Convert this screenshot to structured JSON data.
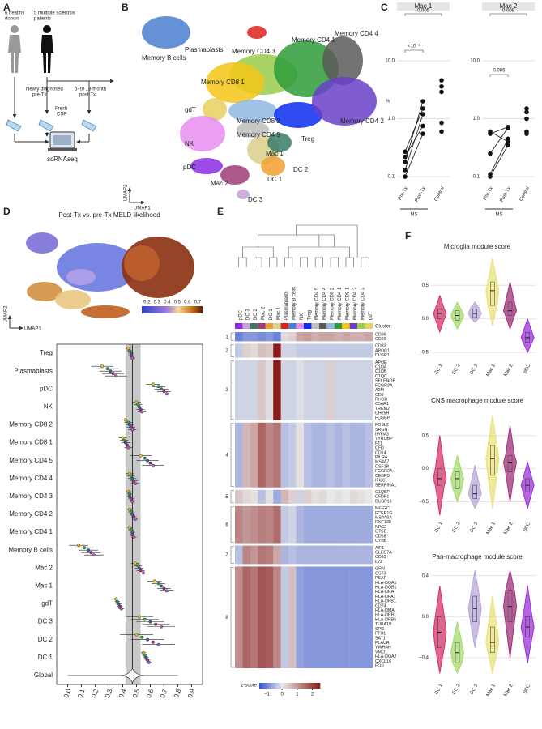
{
  "panel_labels": [
    "A",
    "B",
    "C",
    "D",
    "E",
    "F"
  ],
  "panel_a": {
    "donors": [
      "6 healthy",
      "donors"
    ],
    "patients": [
      "5 multiple sclerosis",
      "patients"
    ],
    "pre": [
      "Newly diagnosed",
      "pre-Tx"
    ],
    "post": [
      "6- to 18-month",
      "post-Tx"
    ],
    "csf": [
      "Fresh",
      "CSF"
    ],
    "method": "scRNAseq"
  },
  "panel_b": {
    "axis_y": "UMAP2",
    "axis_x": "UMAP1",
    "clusters": [
      {
        "label": "Memory B cells",
        "color": "#4a7fd0"
      },
      {
        "label": "Plasmablasts",
        "color": "#e0201a"
      },
      {
        "label": "Memory CD4 3",
        "color": "#9acd4a"
      },
      {
        "label": "Memory CD4 1",
        "color": "#2e9b3a"
      },
      {
        "label": "Memory CD4 4",
        "color": "#5a5a5a"
      },
      {
        "label": "Memory CD8 1",
        "color": "#f5c518"
      },
      {
        "label": "gdT",
        "color": "#e8d060"
      },
      {
        "label": "NK",
        "color": "#e88ef0"
      },
      {
        "label": "Memory CD8 2",
        "color": "#8fb8e0"
      },
      {
        "label": "Memory CD4 5",
        "color": "#bdbdbd"
      },
      {
        "label": "Mac 1",
        "color": "#d8cf8a"
      },
      {
        "label": "pDC",
        "color": "#8a2be2"
      },
      {
        "label": "Treg",
        "color": "#0a2cf0"
      },
      {
        "label": "DC 2",
        "color": "#3a7a6a"
      },
      {
        "label": "Memory CD4 2",
        "color": "#6a3fc9"
      },
      {
        "label": "DC 1",
        "color": "#f0a030"
      },
      {
        "label": "Mac 2",
        "color": "#a03c7a"
      },
      {
        "label": "DC 3",
        "color": "#c7a0d8"
      }
    ]
  },
  "panel_c": {
    "type": "dot",
    "y_label": "%",
    "log_scale": true,
    "ylim": [
      0.08,
      50
    ],
    "yticks": [
      0.1,
      {
        "value": 1,
        "label": "1.0"
      },
      {
        "value": 10,
        "label": "10.0"
      }
    ],
    "categories": [
      "Pre-Tx",
      "Post-Tx",
      "Control"
    ],
    "group_label": "MS",
    "color": "#111111",
    "grid": true,
    "plots": [
      {
        "title": "Mac 1",
        "pre": [
          0.1,
          0.13,
          0.18,
          0.22,
          0.27
        ],
        "post": [
          0.55,
          1.2,
          2.0,
          0.75,
          1.5
        ],
        "control": [
          4.6,
          3.6,
          2.9,
          0.85,
          0.6
        ],
        "p_outer": "0.005",
        "p_inner": "<10⁻³"
      },
      {
        "title": "Mac 2",
        "pre": [
          0.1,
          0.11,
          0.25,
          0.55,
          0.6
        ],
        "post": [
          0.35,
          0.45,
          0.7,
          0.72,
          0.4
        ],
        "control": [
          1.5,
          1.3,
          1.0,
          0.6,
          0.55
        ],
        "p_outer": "0.008",
        "p_inner": "0.006"
      }
    ]
  },
  "panel_d": {
    "title": "Post-Tx vs. pre-Tx MELD likelihood",
    "axis_y": "UMAP2",
    "axis_x": "UMAP1",
    "colorbar_lim": [
      0.15,
      0.75
    ],
    "colorbar_ticks": [
      0.2,
      0.3,
      0.4,
      0.5,
      0.6,
      0.7
    ],
    "forest": {
      "type": "forest",
      "categories": [
        "Treg",
        "Plasmablasts",
        "pDC",
        "NK",
        "Memory CD8 2",
        "Memory CD8 1",
        "Memory CD4 5",
        "Memory CD4 4",
        "Memory CD4 3",
        "Memory CD4 2",
        "Memory CD4 1",
        "Memory B cells",
        "Mac 2",
        "Mac 1",
        "gdT",
        "DC 3",
        "DC 2",
        "DC 1"
      ],
      "values": [
        [
          0.44,
          0.45,
          0.46,
          0.46,
          0.47
        ],
        [
          0.25,
          0.29,
          0.31,
          0.33,
          0.35
        ],
        [
          0.62,
          0.66,
          0.68,
          0.7,
          0.72
        ],
        [
          0.5,
          0.51,
          0.52,
          0.53,
          0.54
        ],
        [
          0.42,
          0.44,
          0.45,
          0.46,
          0.47
        ],
        [
          0.4,
          0.41,
          0.42,
          0.43,
          0.44
        ],
        [
          0.53,
          0.56,
          0.58,
          0.6,
          0.62
        ],
        [
          0.45,
          0.46,
          0.47,
          0.48,
          0.49
        ],
        [
          0.44,
          0.45,
          0.45,
          0.46,
          0.47
        ],
        [
          0.45,
          0.46,
          0.47,
          0.48,
          0.49
        ],
        [
          0.45,
          0.46,
          0.47,
          0.47,
          0.48
        ],
        [
          0.08,
          0.12,
          0.15,
          0.17,
          0.19
        ],
        [
          0.49,
          0.51,
          0.52,
          0.53,
          0.55
        ],
        [
          0.63,
          0.66,
          0.68,
          0.7,
          0.72
        ],
        [
          0.35,
          0.36,
          0.37,
          0.38,
          0.39
        ],
        [
          0.52,
          0.56,
          0.6,
          0.64,
          0.68
        ],
        [
          0.5,
          0.54,
          0.58,
          0.62,
          0.66
        ],
        [
          0.55,
          0.56,
          0.57,
          0.58,
          0.59
        ]
      ],
      "errors": [
        0.02,
        0.08,
        0.05,
        0.03,
        0.03,
        0.03,
        0.08,
        0.03,
        0.02,
        0.02,
        0.02,
        0.07,
        0.03,
        0.05,
        0.02,
        0.1,
        0.12,
        0.02
      ],
      "point_colors": [
        "#e8c020",
        "#40a040",
        "#3060c0",
        "#b03070",
        "#a060d0"
      ],
      "global_label": "Global",
      "global_center": 0.47,
      "global_range": [
        0.0,
        0.8
      ],
      "band": [
        0.42,
        0.53
      ],
      "xlim": [
        -0.08,
        0.98
      ],
      "xticks": [
        {
          "value": 0,
          "label": "0.0"
        },
        0.1,
        0.2,
        0.3,
        0.4,
        0.5,
        0.6,
        0.7,
        0.8,
        0.9
      ]
    }
  },
  "panel_e": {
    "type": "heatmap",
    "cluster_label": "Cluster",
    "colorbar_label": "z-score",
    "zlim": [
      -1.5,
      2.5
    ],
    "zticks": [
      {
        "value": -1,
        "label": "−1"
      },
      0,
      1,
      2
    ],
    "columns": [
      "pDC",
      "DC 3",
      "DC 2",
      "Mac 2",
      "DC 1",
      "Mac 1",
      "Plasmablasts",
      "Memory B cells",
      "NK",
      "Treg",
      "Memory CD4 5",
      "Memory CD4 4",
      "Memory CD8 2",
      "Memory CD4 1",
      "Memory CD8 1",
      "Memory CD4 2",
      "Memory CD4 3",
      "gdT"
    ],
    "column_colors": [
      "#8a2be2",
      "#c7a0d8",
      "#3a7a6a",
      "#a03c7a",
      "#f0a030",
      "#d8cf8a",
      "#e0201a",
      "#4a7fd0",
      "#e88ef0",
      "#0a2cf0",
      "#bdbdbd",
      "#5a5a5a",
      "#8fb8e0",
      "#2e9b3a",
      "#f5c518",
      "#6a3fc9",
      "#9acd4a",
      "#e8d060"
    ],
    "groups": [
      {
        "label": "1",
        "genes": [
          "CD96",
          "CD99"
        ]
      },
      {
        "label": "2",
        "genes": [
          "CD83",
          "APOC1",
          "DUSP1"
        ]
      },
      {
        "label": "3",
        "genes": [
          "APOE",
          "C1QA",
          "C1QB",
          "C1QC",
          "SELENOP",
          "FCGR3A",
          "A2M",
          "CD9",
          "RHOB",
          "C5AR1",
          "TREM2",
          "CH25H",
          "FCGBP"
        ]
      },
      {
        "label": "4",
        "genes": [
          "FOSL2",
          "SRGN",
          "IFITM3",
          "TYROBP",
          "FTL",
          "CFD",
          "CD14",
          "PILRA",
          "MS4A7",
          "CSF1R",
          "FCGR2A",
          "CEBPD",
          "IFI30",
          "SERPINA1"
        ]
      },
      {
        "label": "5",
        "genes": [
          "C1QBP",
          "CFDP1",
          "DUSP18"
        ]
      },
      {
        "label": "6",
        "genes": [
          "MEF2C",
          "FCER1G",
          "MS4A6A",
          "RNF130",
          "NPC2",
          "CTSB",
          "CD68",
          "CYBB"
        ]
      },
      {
        "label": "7",
        "genes": [
          "AIF1",
          "CLEC7A",
          "CD93",
          "LYZ"
        ]
      },
      {
        "label": "8",
        "genes": [
          "GRN",
          "CST3",
          "PSAP",
          "HLA-DQA1",
          "HLA-DQB1",
          "HLA-DRA",
          "HLA-DPA1",
          "HLA-DPB1",
          "CD74",
          "HLA-DMA",
          "HLA-DRB1",
          "HLA-DRB5",
          "TUBA1B",
          "SPI1",
          "FTH1",
          "SAT1",
          "PLAUR",
          "YWHAH",
          "VMO1",
          "HLA-DQA2",
          "CXCL16",
          "FOS"
        ]
      }
    ],
    "values": [
      [
        -1,
        -0.8,
        -0.8,
        -0.9,
        -0.8,
        -1,
        0.2,
        0.3,
        0.8,
        0.9,
        0.7,
        0.8,
        0.8,
        0.7,
        0.8,
        0.7,
        0.7,
        0.8
      ],
      [
        -0.3,
        0.3,
        0.2,
        0.5,
        0.4,
        2.5,
        -0.2,
        -0.2,
        -0.3,
        -0.3,
        -0.3,
        -0.3,
        -0.3,
        -0.3,
        -0.3,
        -0.3,
        -0.3,
        -0.3
      ],
      [
        -0.2,
        -0.2,
        -0.2,
        0.4,
        -0.1,
        2.8,
        -0.2,
        -0.2,
        -0.1,
        -0.2,
        -0.2,
        -0.2,
        0.3,
        -0.2,
        -0.2,
        -0.2,
        -0.2,
        -0.2
      ],
      [
        -0.5,
        0.6,
        0.8,
        1.6,
        1.2,
        1.4,
        -0.4,
        -0.3,
        0.1,
        -0.4,
        -0.5,
        -0.5,
        -0.4,
        -0.5,
        -0.4,
        -0.5,
        -0.5,
        -0.4
      ],
      [
        0.4,
        0.2,
        0.1,
        -0.4,
        0.1,
        -0.6,
        0.6,
        0.3,
        -0.2,
        0.3,
        0.1,
        0.2,
        0,
        0.1,
        0,
        0.2,
        0.1,
        0
      ],
      [
        1.2,
        1,
        1.1,
        1.3,
        1.2,
        1.5,
        -0.3,
        -0.2,
        -0.5,
        -0.6,
        -0.6,
        -0.6,
        -0.6,
        -0.6,
        -0.6,
        -0.6,
        -0.6,
        -0.6
      ],
      [
        -0.4,
        1.2,
        1,
        1.4,
        1.3,
        0.8,
        -0.5,
        -0.4,
        -0.5,
        -0.5,
        -0.5,
        -0.5,
        -0.5,
        -0.5,
        -0.5,
        -0.5,
        -0.5,
        -0.5
      ],
      [
        1.1,
        1.6,
        1.4,
        1.8,
        1.7,
        1.2,
        -0.3,
        0.5,
        -0.7,
        -0.8,
        -0.8,
        -0.8,
        -0.8,
        -0.8,
        -0.8,
        -0.8,
        -0.8,
        -0.8
      ]
    ]
  },
  "panel_f": {
    "type": "violin",
    "categories": [
      "DC 1",
      "DC 2",
      "DC 3",
      "Mac 1",
      "Mac 2",
      "pDC"
    ],
    "colors": [
      "#d6336c",
      "#a6d96a",
      "#b8a6d9",
      "#e8e27a",
      "#a0307a",
      "#9b30d9"
    ],
    "plots": [
      {
        "title": "Microglia module score",
        "ylim": [
          -0.62,
          0.95
        ],
        "yticks": [
          {
            "value": -0.5,
            "label": "−0.5"
          },
          {
            "value": 0,
            "label": "0.0"
          },
          0.5
        ],
        "values": [
          [
            -0.2,
            0,
            0.08,
            0.15,
            0.35
          ],
          [
            -0.15,
            -0.02,
            0.05,
            0.12,
            0.25
          ],
          [
            -0.05,
            0.02,
            0.08,
            0.15,
            0.25
          ],
          [
            -0.1,
            0.2,
            0.42,
            0.55,
            0.9
          ],
          [
            -0.15,
            0.05,
            0.12,
            0.25,
            0.55
          ],
          [
            -0.5,
            -0.35,
            -0.28,
            -0.2,
            0
          ]
        ]
      },
      {
        "title": "CNS macrophage module score",
        "ylim": [
          -0.75,
          0.9
        ],
        "yticks": [
          {
            "value": -0.5,
            "label": "−0.5"
          },
          {
            "value": 0,
            "label": "0.0"
          },
          0.5
        ],
        "values": [
          [
            -0.7,
            -0.25,
            -0.15,
            0,
            0.5
          ],
          [
            -0.5,
            -0.3,
            -0.15,
            -0.05,
            0.2
          ],
          [
            -0.6,
            -0.45,
            -0.38,
            -0.25,
            0.05
          ],
          [
            -0.6,
            -0.1,
            0.15,
            0.35,
            0.8
          ],
          [
            -0.5,
            -0.05,
            0.1,
            0.2,
            0.65
          ],
          [
            -0.6,
            -0.35,
            -0.25,
            -0.15,
            0.1
          ]
        ]
      },
      {
        "title": "Pan-macrophage module score",
        "ylim": [
          -0.62,
          0.5
        ],
        "yticks": [
          {
            "value": -0.4,
            "label": "−0.4"
          },
          {
            "value": 0,
            "label": "0.0"
          },
          0.4
        ],
        "values": [
          [
            -0.55,
            -0.3,
            -0.15,
            0,
            0.3
          ],
          [
            -0.55,
            -0.45,
            -0.35,
            -0.25,
            -0.05
          ],
          [
            -0.3,
            -0.05,
            0.08,
            0.2,
            0.45
          ],
          [
            -0.55,
            -0.35,
            -0.25,
            -0.1,
            0.2
          ],
          [
            -0.4,
            -0.05,
            0.1,
            0.25,
            0.45
          ],
          [
            -0.45,
            -0.2,
            -0.1,
            0,
            0.3
          ]
        ]
      }
    ]
  }
}
